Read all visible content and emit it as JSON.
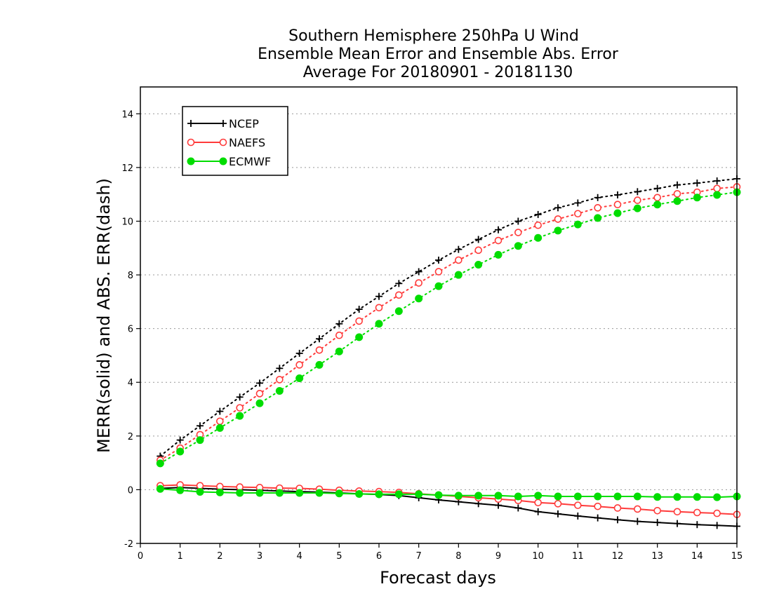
{
  "chart_data": {
    "type": "line",
    "title": [
      "Southern Hemisphere 250hPa U Wind",
      "Ensemble Mean Error and Ensemble Abs. Error",
      "Average For 20180901 - 20181130"
    ],
    "xlabel": "Forecast days",
    "ylabel": "MERR(solid) and ABS. ERR(dash)",
    "xlim": [
      0,
      15
    ],
    "ylim": [
      -2,
      15
    ],
    "xticks": [
      0,
      1,
      2,
      3,
      4,
      5,
      6,
      7,
      8,
      9,
      10,
      11,
      12,
      13,
      14,
      15
    ],
    "yticks": [
      -2,
      0,
      2,
      4,
      6,
      8,
      10,
      12,
      14
    ],
    "grid": "horizontal dotted",
    "legend_position": "top-left",
    "x": [
      0.5,
      1,
      1.5,
      2,
      2.5,
      3,
      3.5,
      4,
      4.5,
      5,
      5.5,
      6,
      6.5,
      7,
      7.5,
      8,
      8.5,
      9,
      9.5,
      10,
      10.5,
      11,
      11.5,
      12,
      12.5,
      13,
      13.5,
      14,
      14.5,
      15
    ],
    "series": [
      {
        "name": "NCEP",
        "color": "#000000",
        "marker": "plus",
        "merr": [
          0.05,
          0.08,
          0.05,
          0.02,
          0.0,
          -0.02,
          -0.05,
          -0.07,
          -0.09,
          -0.12,
          -0.15,
          -0.18,
          -0.22,
          -0.3,
          -0.38,
          -0.45,
          -0.52,
          -0.58,
          -0.68,
          -0.82,
          -0.9,
          -0.98,
          -1.05,
          -1.12,
          -1.18,
          -1.22,
          -1.26,
          -1.3,
          -1.33,
          -1.36
        ],
        "abs_err": [
          1.25,
          1.85,
          2.38,
          2.92,
          3.45,
          3.97,
          4.52,
          5.08,
          5.62,
          6.18,
          6.72,
          7.2,
          7.68,
          8.12,
          8.55,
          8.95,
          9.32,
          9.68,
          10.0,
          10.25,
          10.5,
          10.68,
          10.88,
          10.98,
          11.1,
          11.22,
          11.35,
          11.42,
          11.5,
          11.58
        ]
      },
      {
        "name": "NAEFS",
        "color": "#ff3b3b",
        "marker": "circle-open",
        "merr": [
          0.15,
          0.18,
          0.15,
          0.12,
          0.1,
          0.08,
          0.06,
          0.05,
          0.02,
          -0.02,
          -0.05,
          -0.07,
          -0.1,
          -0.15,
          -0.2,
          -0.25,
          -0.3,
          -0.35,
          -0.4,
          -0.48,
          -0.52,
          -0.58,
          -0.62,
          -0.68,
          -0.72,
          -0.78,
          -0.82,
          -0.85,
          -0.88,
          -0.92
        ],
        "abs_err": [
          1.1,
          1.55,
          2.05,
          2.55,
          3.05,
          3.58,
          4.1,
          4.65,
          5.2,
          5.75,
          6.28,
          6.78,
          7.25,
          7.7,
          8.12,
          8.55,
          8.92,
          9.28,
          9.58,
          9.85,
          10.08,
          10.28,
          10.5,
          10.62,
          10.78,
          10.88,
          11.02,
          11.08,
          11.22,
          11.28
        ]
      },
      {
        "name": "ECMWF",
        "color": "#00dd00",
        "marker": "circle-filled",
        "merr": [
          0.03,
          -0.02,
          -0.08,
          -0.1,
          -0.12,
          -0.12,
          -0.12,
          -0.12,
          -0.12,
          -0.14,
          -0.16,
          -0.17,
          -0.17,
          -0.17,
          -0.2,
          -0.22,
          -0.22,
          -0.22,
          -0.25,
          -0.22,
          -0.25,
          -0.25,
          -0.25,
          -0.25,
          -0.25,
          -0.27,
          -0.27,
          -0.27,
          -0.28,
          -0.25
        ],
        "abs_err": [
          0.98,
          1.42,
          1.85,
          2.3,
          2.75,
          3.22,
          3.68,
          4.15,
          4.65,
          5.15,
          5.68,
          6.18,
          6.65,
          7.12,
          7.58,
          8.0,
          8.38,
          8.75,
          9.08,
          9.38,
          9.65,
          9.88,
          10.12,
          10.3,
          10.48,
          10.62,
          10.75,
          10.88,
          10.98,
          11.08
        ]
      }
    ]
  }
}
